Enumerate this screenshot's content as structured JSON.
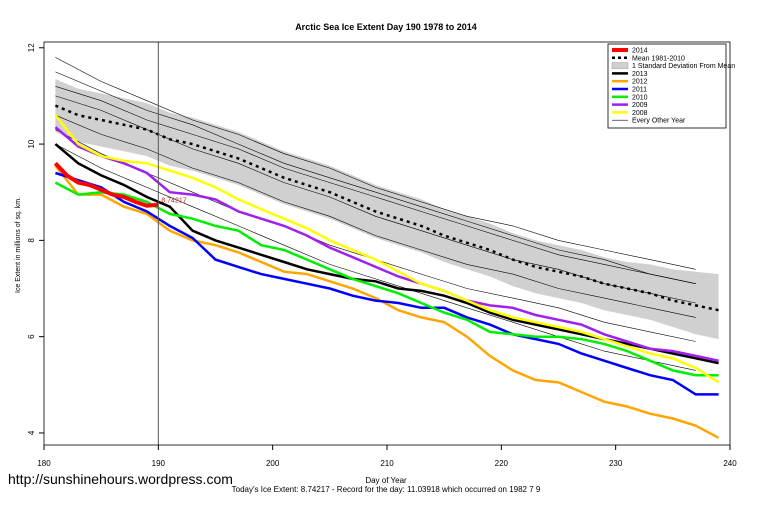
{
  "chart_data": {
    "type": "line",
    "title": "Arctic Sea Ice Extent Day 190 1978 to 2014",
    "x_label": "Day of Year",
    "y_label": "Ice Extent in millions of sq. km.",
    "footer": "Today's Ice Extent: 8.74217  - Record for the day: 11.03918 which occurred on 1982 7 9",
    "watermark": "http://sunshinehours.wordpress.com",
    "xlim": [
      180,
      240
    ],
    "ylim": [
      3.75,
      12.12
    ],
    "xticks": [
      180,
      190,
      200,
      210,
      220,
      230,
      240
    ],
    "yticks": [
      4,
      6,
      8,
      10,
      12
    ],
    "vline": 190,
    "legend": "top right",
    "annotation": {
      "text": "8.74217",
      "x": 190,
      "y": 8.74217,
      "color": "#cc2222"
    },
    "x": [
      181,
      183,
      185,
      187,
      189,
      191,
      193,
      195,
      197,
      199,
      201,
      203,
      205,
      207,
      209,
      211,
      213,
      215,
      217,
      219,
      221,
      223,
      225,
      227,
      229,
      231,
      233,
      235,
      237,
      239
    ],
    "current_year": {
      "name": "2014",
      "color": "#ff0000",
      "x": [
        181,
        182,
        183,
        184,
        185,
        186,
        187,
        188,
        189,
        190
      ],
      "values": [
        9.6,
        9.35,
        9.2,
        9.15,
        9.05,
        8.95,
        8.9,
        8.8,
        8.72,
        8.74
      ]
    },
    "mean": {
      "name": "Mean 1981-2010",
      "color": "#000000",
      "values": [
        10.8,
        10.6,
        10.5,
        10.4,
        10.3,
        10.1,
        10.0,
        9.85,
        9.7,
        9.5,
        9.3,
        9.15,
        9.0,
        8.8,
        8.6,
        8.45,
        8.3,
        8.1,
        7.95,
        7.8,
        7.6,
        7.45,
        7.35,
        7.25,
        7.1,
        7.0,
        6.9,
        6.75,
        6.65,
        6.55
      ]
    },
    "sd_band": {
      "name": "1 Standard Deviation From Mean",
      "color": "#d0d0d0",
      "upper": [
        11.35,
        11.15,
        11.05,
        10.95,
        10.85,
        10.65,
        10.55,
        10.4,
        10.25,
        10.05,
        9.85,
        9.7,
        9.55,
        9.35,
        9.15,
        9.0,
        8.85,
        8.65,
        8.5,
        8.35,
        8.15,
        8.0,
        7.9,
        7.8,
        7.65,
        7.55,
        7.5,
        7.4,
        7.35,
        7.3
      ],
      "lower": [
        10.25,
        10.05,
        9.95,
        9.85,
        9.75,
        9.55,
        9.45,
        9.3,
        9.15,
        8.95,
        8.75,
        8.6,
        8.45,
        8.25,
        8.05,
        7.9,
        7.75,
        7.55,
        7.4,
        7.25,
        7.05,
        6.9,
        6.8,
        6.7,
        6.55,
        6.45,
        6.35,
        6.2,
        6.05,
        5.95
      ]
    },
    "series": [
      {
        "name": "2013",
        "color": "#000000",
        "values": [
          10.0,
          9.6,
          9.35,
          9.15,
          8.9,
          8.7,
          8.2,
          8.0,
          7.85,
          7.7,
          7.55,
          7.4,
          7.3,
          7.2,
          7.15,
          7.0,
          6.95,
          6.85,
          6.7,
          6.5,
          6.35,
          6.25,
          6.15,
          6.05,
          5.95,
          5.85,
          5.75,
          5.65,
          5.55,
          5.45
        ]
      },
      {
        "name": "2012",
        "color": "#ffa500",
        "values": [
          9.55,
          8.95,
          8.95,
          8.7,
          8.55,
          8.2,
          8.0,
          7.9,
          7.75,
          7.55,
          7.35,
          7.3,
          7.15,
          7.0,
          6.8,
          6.55,
          6.4,
          6.3,
          6.0,
          5.6,
          5.3,
          5.1,
          5.05,
          4.85,
          4.65,
          4.55,
          4.4,
          4.3,
          4.15,
          3.9
        ]
      },
      {
        "name": "2011",
        "color": "#0000ff",
        "values": [
          9.4,
          9.25,
          9.1,
          8.8,
          8.6,
          8.3,
          8.05,
          7.6,
          7.45,
          7.3,
          7.2,
          7.1,
          7.0,
          6.85,
          6.75,
          6.7,
          6.6,
          6.6,
          6.4,
          6.25,
          6.05,
          5.95,
          5.85,
          5.65,
          5.5,
          5.35,
          5.2,
          5.1,
          4.8,
          4.8
        ]
      },
      {
        "name": "2010",
        "color": "#00ee00",
        "values": [
          9.2,
          8.95,
          9.0,
          8.95,
          8.8,
          8.55,
          8.45,
          8.3,
          8.2,
          7.9,
          7.8,
          7.6,
          7.4,
          7.2,
          7.05,
          6.9,
          6.7,
          6.5,
          6.35,
          6.1,
          6.05,
          6.0,
          6.0,
          5.95,
          5.85,
          5.7,
          5.5,
          5.3,
          5.2,
          5.2
        ]
      },
      {
        "name": "2009",
        "color": "#a020f0",
        "values": [
          10.35,
          9.95,
          9.75,
          9.6,
          9.4,
          9.0,
          8.95,
          8.85,
          8.6,
          8.45,
          8.3,
          8.1,
          7.85,
          7.65,
          7.45,
          7.25,
          7.1,
          6.95,
          6.75,
          6.65,
          6.6,
          6.45,
          6.35,
          6.25,
          6.05,
          5.9,
          5.75,
          5.7,
          5.6,
          5.5
        ]
      },
      {
        "name": "2008",
        "color": "#ffff00",
        "values": [
          10.6,
          10.0,
          9.75,
          9.65,
          9.6,
          9.45,
          9.3,
          9.1,
          8.85,
          8.65,
          8.45,
          8.25,
          8.0,
          7.8,
          7.6,
          7.35,
          7.1,
          6.95,
          6.75,
          6.55,
          6.4,
          6.3,
          6.2,
          6.1,
          5.95,
          5.8,
          5.65,
          5.55,
          5.35,
          5.05
        ]
      }
    ],
    "other_years": {
      "name": "Every Other Year",
      "color": "#000000",
      "x": [
        181,
        185,
        189,
        193,
        197,
        201,
        205,
        209,
        213,
        217,
        221,
        225,
        229,
        233,
        237
      ],
      "lines": [
        [
          11.8,
          11.3,
          10.9,
          10.5,
          10.2,
          9.8,
          9.5,
          9.1,
          8.8,
          8.5,
          8.3,
          8.0,
          7.8,
          7.6,
          7.4
        ],
        [
          11.5,
          11.1,
          10.7,
          10.4,
          10.0,
          9.6,
          9.3,
          9.0,
          8.7,
          8.4,
          8.1,
          7.8,
          7.6,
          7.3,
          7.1
        ],
        [
          11.0,
          10.7,
          10.3,
          9.9,
          9.6,
          9.2,
          8.9,
          8.5,
          8.2,
          7.9,
          7.6,
          7.4,
          7.1,
          6.9,
          6.7
        ],
        [
          10.6,
          10.2,
          9.9,
          9.5,
          9.2,
          8.8,
          8.5,
          8.1,
          7.8,
          7.5,
          7.3,
          7.0,
          6.8,
          6.6,
          6.4
        ],
        [
          10.3,
          9.8,
          9.4,
          9.0,
          8.6,
          8.3,
          7.9,
          7.6,
          7.3,
          7.0,
          6.8,
          6.6,
          6.3,
          6.1,
          5.9
        ],
        [
          10.0,
          9.5,
          9.1,
          8.7,
          8.3,
          7.9,
          7.5,
          7.2,
          6.9,
          6.6,
          6.3,
          6.0,
          5.7,
          5.5,
          5.3
        ],
        [
          11.2,
          10.9,
          10.5,
          10.2,
          9.9,
          9.5,
          9.2,
          8.9,
          8.6,
          8.3,
          8.0,
          7.7,
          7.5,
          7.3,
          7.1
        ]
      ]
    }
  }
}
